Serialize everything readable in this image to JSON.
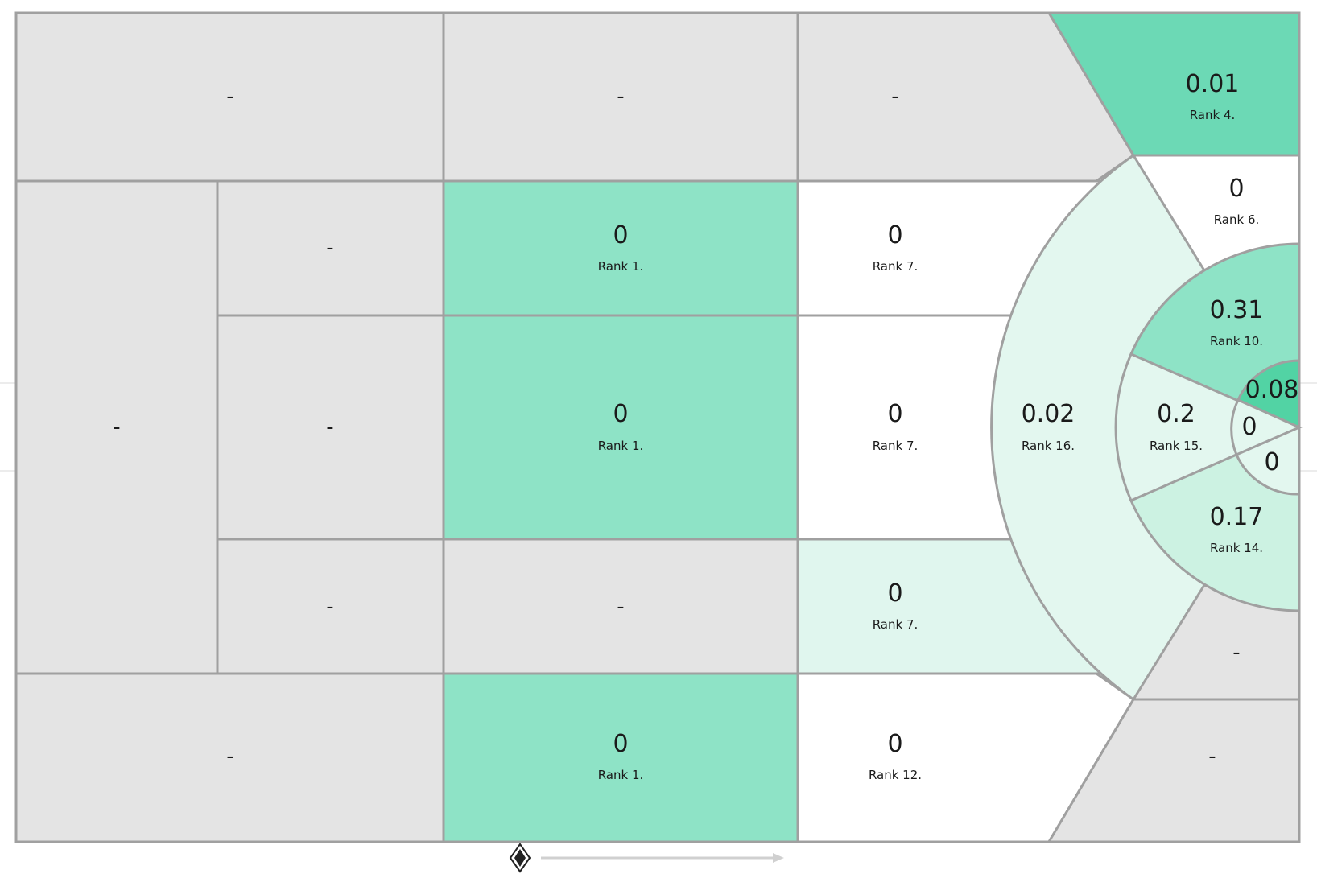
{
  "colors": {
    "grey": "#e4e4e4",
    "white": "#ffffff",
    "mint_pale": "#e3f7ef",
    "mint_light": "#ccf2e2",
    "mint_mid": "#8ee3c6",
    "mint_strong": "#6cd9b5",
    "mint_dark": "#52d3a4",
    "line": "#a0a0a0"
  },
  "zones": {
    "far_top": {
      "value": "-",
      "rank": ""
    },
    "mid_top": {
      "value": "-",
      "rank": ""
    },
    "att_top": {
      "value": "-",
      "rank": ""
    },
    "corner_top": {
      "value": "0.01",
      "rank": "Rank 4."
    },
    "left_center": {
      "value": "-",
      "rank": ""
    },
    "left2_top": {
      "value": "-",
      "rank": ""
    },
    "left2_center": {
      "value": "-",
      "rank": ""
    },
    "left2_bottom": {
      "value": "-",
      "rank": ""
    },
    "mid_upper": {
      "value": "0",
      "rank": "Rank 1."
    },
    "mid_center": {
      "value": "0",
      "rank": "Rank 1."
    },
    "mid_lower": {
      "value": "-",
      "rank": ""
    },
    "att_upper": {
      "value": "0",
      "rank": "Rank 7."
    },
    "att_center": {
      "value": "0",
      "rank": "Rank 7."
    },
    "att_lower": {
      "value": "0",
      "rank": "Rank 7."
    },
    "box_arc": {
      "value": "0.02",
      "rank": "Rank 16."
    },
    "box_top_wing": {
      "value": "0",
      "rank": "Rank 6."
    },
    "box_upper": {
      "value": "0.31",
      "rank": "Rank 10."
    },
    "box_center": {
      "value": "0.2",
      "rank": "Rank 15."
    },
    "box_lower": {
      "value": "0.17",
      "rank": "Rank 14."
    },
    "six_top": {
      "value": "0.08",
      "rank": ""
    },
    "six_mid": {
      "value": "0",
      "rank": ""
    },
    "six_bottom": {
      "value": "0",
      "rank": ""
    },
    "box_bottom_wing": {
      "value": "-",
      "rank": ""
    },
    "corner_bottom": {
      "value": "-",
      "rank": ""
    },
    "far_bottom": {
      "value": "-",
      "rank": ""
    },
    "mid_bottom": {
      "value": "0",
      "rank": "Rank 1."
    },
    "att_bottom": {
      "value": "0",
      "rank": "Rank 12."
    }
  },
  "footer": {
    "crest_icon": "team-crest-icon",
    "direction_icon": "attack-direction-arrow-icon"
  }
}
